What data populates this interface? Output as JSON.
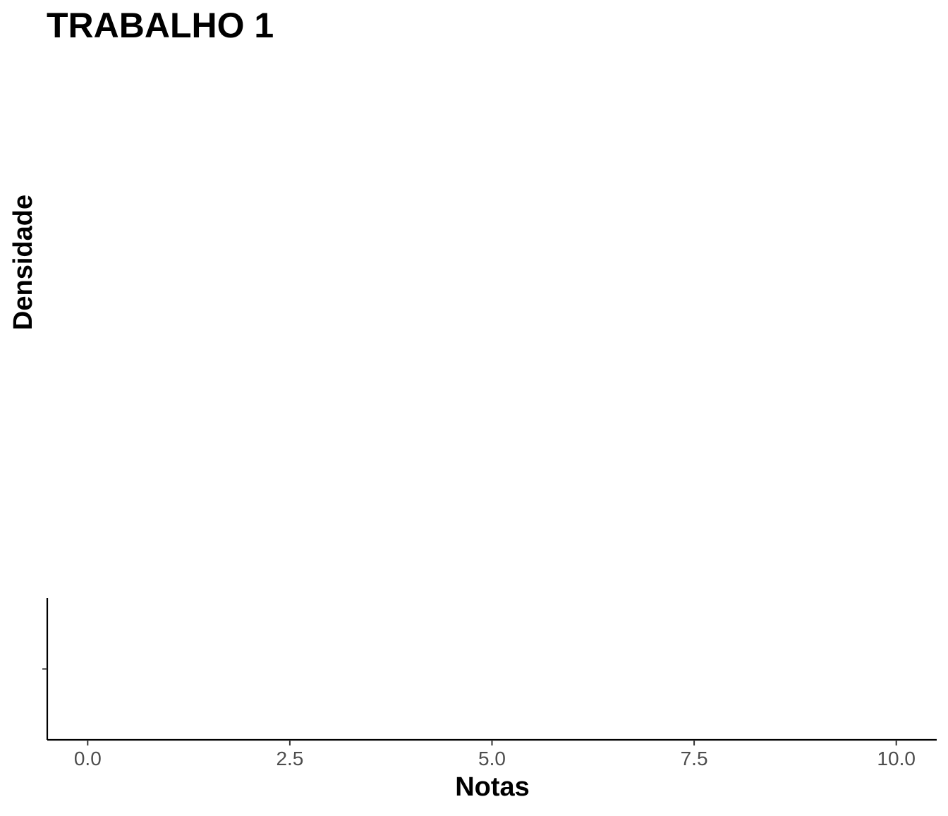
{
  "chart_data": {
    "type": "area",
    "title": "TRABALHO 1",
    "xlabel": "Notas",
    "ylabel": "Densidade",
    "x_ticks": [
      0,
      2.5,
      5,
      7.5,
      10
    ],
    "x_tick_labels": [
      "0.0",
      "2.5",
      "5.0",
      "7.5",
      "10.0"
    ],
    "xlim": [
      -0.5,
      10.5
    ],
    "y_ticks": [
      0
    ],
    "y_tick_labels": [
      ""
    ],
    "ylim": [
      -1,
      1
    ],
    "series": [],
    "grid": false,
    "legend": "none"
  },
  "colors": {
    "axis_line": "#000000",
    "tick_label": "#4d4d4d",
    "background": "#ffffff"
  }
}
